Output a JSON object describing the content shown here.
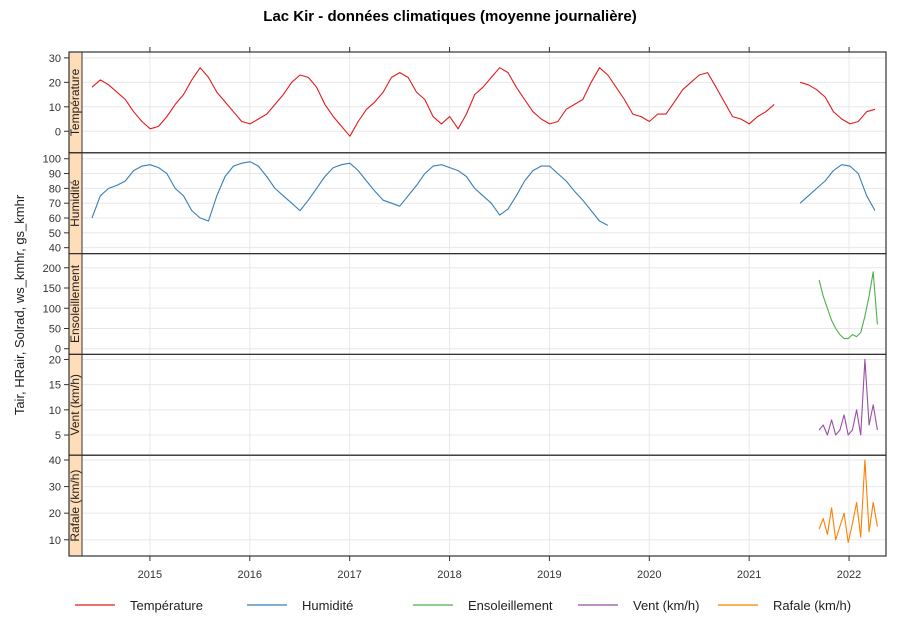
{
  "chart_data": {
    "type": "line",
    "title": "Lac Kir - données climatiques (moyenne journalière)",
    "ylabel": "Tair, HRair, Solrad, ws_kmhr, gs_kmhr",
    "xlabel": "",
    "xlim": [
      2014.32,
      2022.37
    ],
    "x_ticks": [
      2015,
      2016,
      2017,
      2018,
      2019,
      2020,
      2021,
      2022
    ],
    "grid": true,
    "legend_position": "bottom",
    "panels": [
      {
        "name": "Température",
        "color": "#E41A1C",
        "ylim": [
          -8.8,
          32.4
        ],
        "yticks": [
          0,
          10,
          20,
          30
        ],
        "segments": [
          {
            "start": 2014.42,
            "step": 0.0833,
            "values": [
              18,
              21,
              19,
              16,
              13,
              8,
              4,
              1,
              2,
              6,
              11,
              15,
              21,
              26,
              22,
              16,
              12,
              8,
              4,
              3,
              5,
              7,
              11,
              15,
              20,
              23,
              22,
              18,
              11,
              6,
              2,
              -2,
              4,
              9,
              12,
              16,
              22,
              24,
              22,
              16,
              13,
              6,
              3,
              6,
              1,
              7,
              15,
              18,
              22,
              26,
              24,
              18,
              13,
              8,
              5,
              3,
              4,
              9,
              11,
              13,
              20,
              26,
              23,
              18,
              13,
              7,
              6,
              4,
              7,
              7,
              12,
              17,
              20,
              23,
              24,
              18,
              12,
              6,
              5,
              3,
              6,
              8,
              11
            ]
          },
          {
            "start": 2021.51,
            "step": 0.0833,
            "values": [
              20,
              19,
              17,
              14,
              8,
              5,
              3,
              4,
              8,
              9
            ]
          }
        ]
      },
      {
        "name": "Humidité",
        "color": "#377EB8",
        "ylim": [
          36,
          104
        ],
        "yticks": [
          40,
          50,
          60,
          70,
          80,
          90,
          100
        ],
        "segments": [
          {
            "start": 2014.42,
            "step": 0.0833,
            "values": [
              60,
              75,
              80,
              82,
              85,
              92,
              95,
              96,
              94,
              90,
              80,
              75,
              65,
              60,
              58,
              75,
              88,
              95,
              97,
              98,
              95,
              88,
              80,
              75,
              70,
              65,
              72,
              80,
              88,
              94,
              96,
              97,
              92,
              85,
              78,
              72,
              70,
              68,
              75,
              82,
              90,
              95,
              96,
              94,
              92,
              88,
              80,
              75,
              70,
              62,
              66,
              75,
              85,
              92,
              95,
              95,
              90,
              85,
              78,
              72,
              65,
              58,
              55
            ]
          },
          {
            "start": 2021.51,
            "step": 0.0833,
            "values": [
              70,
              75,
              80,
              85,
              92,
              96,
              95,
              90,
              75,
              65
            ]
          }
        ]
      },
      {
        "name": "Ensoleillement",
        "color": "#4DAF4A",
        "ylim": [
          -14,
          235
        ],
        "yticks": [
          0,
          50,
          100,
          150,
          200
        ],
        "segments": [
          {
            "start": 2021.7,
            "step": 0.0417,
            "values": [
              170,
              130,
              100,
              70,
              50,
              35,
              25,
              25,
              35,
              30,
              40,
              80,
              130,
              190,
              60
            ]
          }
        ]
      },
      {
        "name": "Vent (km/h)",
        "color": "#984EA3",
        "ylim": [
          1,
          21
        ],
        "yticks": [
          5,
          10,
          15,
          20
        ],
        "segments": [
          {
            "start": 2021.7,
            "step": 0.0417,
            "values": [
              6,
              7,
              5,
              8,
              5,
              6,
              9,
              5,
              6,
              10,
              5,
              20,
              7,
              11,
              6
            ]
          }
        ]
      },
      {
        "name": "Rafale (km/h)",
        "color": "#FF7F00",
        "ylim": [
          3.9,
          41.8
        ],
        "yticks": [
          10,
          20,
          30,
          40
        ],
        "segments": [
          {
            "start": 2021.7,
            "step": 0.0417,
            "values": [
              14,
              18,
              12,
              22,
              10,
              15,
              20,
              9,
              16,
              24,
              11,
              40,
              13,
              24,
              15
            ]
          }
        ]
      }
    ]
  }
}
